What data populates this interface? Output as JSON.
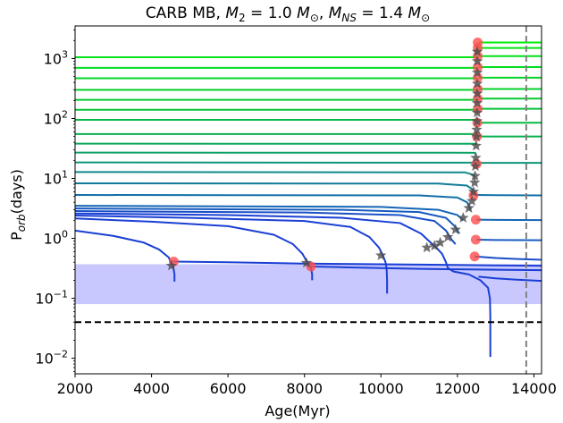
{
  "chart_data": {
    "type": "line",
    "title_parts": [
      "CARB MB, ",
      "M",
      "2",
      " = 1.0 ",
      "M",
      "⊙",
      ", ",
      "M",
      "NS",
      " = 1.4 ",
      "M",
      "⊙"
    ],
    "xlabel": "Age(Myr)",
    "ylabel_parts": [
      "P",
      "orb",
      "(days)"
    ],
    "xlim": [
      2000,
      14200
    ],
    "ylim": [
      0.0055,
      3500
    ],
    "y_scale": "log",
    "x_ticks": [
      {
        "value": 2000,
        "label": "2000"
      },
      {
        "value": 4000,
        "label": "4000"
      },
      {
        "value": 6000,
        "label": "6000"
      },
      {
        "value": 8000,
        "label": "8000"
      },
      {
        "value": 10000,
        "label": "10000"
      },
      {
        "value": 12000,
        "label": "12000"
      },
      {
        "value": 14000,
        "label": "14000"
      }
    ],
    "y_ticks": [
      {
        "value": 0.01,
        "base": "10",
        "exp": "−2"
      },
      {
        "value": 0.1,
        "base": "10",
        "exp": "−1"
      },
      {
        "value": 1,
        "base": "10",
        "exp": "0"
      },
      {
        "value": 10,
        "base": "10",
        "exp": "1"
      },
      {
        "value": 100,
        "base": "10",
        "exp": "2"
      },
      {
        "value": 1000,
        "base": "10",
        "exp": "3"
      }
    ],
    "shaded_band": {
      "y_range": [
        0.08,
        0.37
      ],
      "color": "#c8c8ff"
    },
    "reference_lines": [
      {
        "orientation": "horizontal",
        "value": 0.04,
        "style": "dashed",
        "color": "#000000"
      },
      {
        "orientation": "vertical",
        "value": 13800,
        "style": "dashed",
        "color": "#808080"
      }
    ],
    "series": [
      {
        "color": "#1a3fd4",
        "points": [
          [
            2000,
            1.35
          ],
          [
            3000,
            1.1
          ],
          [
            3800,
            0.85
          ],
          [
            4200,
            0.65
          ],
          [
            4450,
            0.48
          ],
          [
            4520,
            0.38
          ],
          [
            4560,
            0.35
          ],
          [
            4580,
            0.3
          ],
          [
            4600,
            0.25
          ],
          [
            4600,
            0.19
          ]
        ]
      },
      {
        "color": "#1a3fd4",
        "points": [
          [
            4560,
            0.41
          ],
          [
            6000,
            0.4
          ],
          [
            7000,
            0.39
          ],
          [
            8000,
            0.38
          ],
          [
            9000,
            0.375
          ],
          [
            10000,
            0.37
          ],
          [
            11000,
            0.365
          ],
          [
            12000,
            0.36
          ],
          [
            13000,
            0.355
          ],
          [
            14200,
            0.35
          ]
        ]
      },
      {
        "color": "#1a3fd4",
        "points": [
          [
            2000,
            2.15
          ],
          [
            4000,
            1.9
          ],
          [
            6000,
            1.6
          ],
          [
            7200,
            1.15
          ],
          [
            7700,
            0.8
          ],
          [
            7950,
            0.55
          ],
          [
            8050,
            0.42
          ],
          [
            8150,
            0.35
          ],
          [
            8180,
            0.3
          ],
          [
            8200,
            0.25
          ],
          [
            8200,
            0.2
          ]
        ]
      },
      {
        "color": "#1a3fd4",
        "points": [
          [
            8180,
            0.34
          ],
          [
            9000,
            0.33
          ],
          [
            10000,
            0.32
          ],
          [
            11000,
            0.31
          ],
          [
            12000,
            0.305
          ],
          [
            13000,
            0.3
          ],
          [
            14200,
            0.295
          ]
        ]
      },
      {
        "color": "#1a3fd4",
        "points": [
          [
            2000,
            2.4
          ],
          [
            5000,
            2.2
          ],
          [
            8000,
            1.95
          ],
          [
            9200,
            1.55
          ],
          [
            9700,
            1.05
          ],
          [
            9950,
            0.7
          ],
          [
            10050,
            0.52
          ],
          [
            10120,
            0.4
          ],
          [
            10150,
            0.3
          ],
          [
            10160,
            0.2
          ],
          [
            10160,
            0.12
          ]
        ]
      },
      {
        "color": "#1a3fd4",
        "points": [
          [
            2000,
            2.6
          ],
          [
            6000,
            2.45
          ],
          [
            9000,
            2.2
          ],
          [
            10500,
            1.8
          ],
          [
            11050,
            1.2
          ],
          [
            11300,
            0.85
          ],
          [
            11450,
            0.7
          ],
          [
            11600,
            0.55
          ],
          [
            11700,
            0.4
          ],
          [
            11750,
            0.32
          ],
          [
            11900,
            0.28
          ],
          [
            12300,
            0.25
          ],
          [
            12600,
            0.2
          ],
          [
            12800,
            0.15
          ],
          [
            12850,
            0.1
          ],
          [
            12860,
            0.05
          ],
          [
            12860,
            0.0105
          ]
        ]
      },
      {
        "color": "#1a3fd4",
        "points": [
          [
            12550,
            0.23
          ],
          [
            13000,
            0.215
          ],
          [
            13500,
            0.205
          ],
          [
            14200,
            0.195
          ]
        ]
      },
      {
        "color": "#1a4fc8",
        "points": [
          [
            2000,
            2.85
          ],
          [
            8000,
            2.7
          ],
          [
            10500,
            2.45
          ],
          [
            11400,
            1.95
          ],
          [
            11700,
            1.35
          ],
          [
            11850,
            0.95
          ],
          [
            11950,
            0.8
          ]
        ]
      },
      {
        "color": "#1a4fc8",
        "points": [
          [
            12450,
            0.5
          ],
          [
            13000,
            0.47
          ],
          [
            13500,
            0.455
          ],
          [
            14200,
            0.44
          ]
        ]
      },
      {
        "color": "#165bc0",
        "points": [
          [
            2000,
            3.15
          ],
          [
            9000,
            3.0
          ],
          [
            11000,
            2.75
          ],
          [
            11700,
            2.2
          ],
          [
            11950,
            1.55
          ],
          [
            12050,
            1.2
          ]
        ]
      },
      {
        "color": "#165bc0",
        "points": [
          [
            12500,
            0.95
          ],
          [
            13000,
            0.94
          ],
          [
            14200,
            0.93
          ]
        ]
      },
      {
        "color": "#1565b5",
        "points": [
          [
            2000,
            3.5
          ],
          [
            10000,
            3.35
          ],
          [
            11500,
            3.0
          ],
          [
            12000,
            2.45
          ],
          [
            12150,
            2.0
          ]
        ]
      },
      {
        "color": "#1565b5",
        "points": [
          [
            12500,
            2.05
          ],
          [
            13000,
            2.03
          ],
          [
            14200,
            2.02
          ]
        ]
      },
      {
        "color": "#126fa8",
        "points": [
          [
            2000,
            5.3
          ],
          [
            11000,
            5.2
          ],
          [
            12000,
            4.8
          ],
          [
            12250,
            4.0
          ],
          [
            12350,
            3.0
          ]
        ]
      },
      {
        "color": "#126fa8",
        "points": [
          [
            12450,
            5.3
          ],
          [
            13000,
            5.25
          ],
          [
            14200,
            5.2
          ]
        ]
      },
      {
        "color": "#107a9a",
        "points": [
          [
            2000,
            8.3
          ],
          [
            11500,
            8.2
          ],
          [
            12250,
            7.6
          ],
          [
            12400,
            6.5
          ],
          [
            12420,
            5.3
          ]
        ]
      },
      {
        "color": "#0f8a8a",
        "points": [
          [
            2000,
            12.8
          ],
          [
            12200,
            12.6
          ],
          [
            12420,
            11.5
          ],
          [
            12450,
            10.5
          ]
        ]
      },
      {
        "color": "#0e9478",
        "points": [
          [
            2000,
            18.5
          ],
          [
            12400,
            18.3
          ],
          [
            12470,
            17.5
          ]
        ]
      },
      {
        "color": "#0e9478",
        "points": [
          [
            12500,
            18.2
          ],
          [
            13000,
            18.2
          ],
          [
            14200,
            18.2
          ]
        ]
      },
      {
        "color": "#0ca068",
        "points": [
          [
            2000,
            27
          ],
          [
            12460,
            26.8
          ],
          [
            12490,
            25
          ]
        ]
      },
      {
        "color": "#0aa85a",
        "points": [
          [
            2000,
            38
          ],
          [
            12480,
            37.8
          ],
          [
            12500,
            36
          ]
        ]
      },
      {
        "color": "#09b04e",
        "points": [
          [
            2000,
            55
          ],
          [
            12500,
            55
          ],
          [
            12520,
            52
          ]
        ]
      },
      {
        "color": "#09b04e",
        "points": [
          [
            12550,
            50
          ],
          [
            13000,
            50
          ],
          [
            14200,
            50
          ]
        ]
      },
      {
        "color": "#07b944",
        "points": [
          [
            2000,
            95
          ],
          [
            12500,
            95
          ]
        ]
      },
      {
        "color": "#07b944",
        "points": [
          [
            12550,
            85
          ],
          [
            13000,
            85
          ],
          [
            14200,
            85
          ]
        ]
      },
      {
        "color": "#06c23a",
        "points": [
          [
            2000,
            140
          ],
          [
            12510,
            140
          ]
        ]
      },
      {
        "color": "#06c23a",
        "points": [
          [
            12550,
            145
          ],
          [
            13000,
            145
          ],
          [
            14200,
            145
          ]
        ]
      },
      {
        "color": "#05c932",
        "points": [
          [
            2000,
            205
          ],
          [
            12510,
            205
          ]
        ]
      },
      {
        "color": "#05c932",
        "points": [
          [
            12560,
            215
          ],
          [
            13000,
            215
          ],
          [
            14200,
            215
          ]
        ]
      },
      {
        "color": "#04d02a",
        "points": [
          [
            2000,
            300
          ],
          [
            12515,
            300
          ]
        ]
      },
      {
        "color": "#04d02a",
        "points": [
          [
            12560,
            310
          ],
          [
            13000,
            310
          ],
          [
            14200,
            310
          ]
        ]
      },
      {
        "color": "#03d624",
        "points": [
          [
            2000,
            470
          ],
          [
            12515,
            470
          ]
        ]
      },
      {
        "color": "#03d624",
        "points": [
          [
            12560,
            480
          ],
          [
            13000,
            480
          ],
          [
            14200,
            480
          ]
        ]
      },
      {
        "color": "#02dc1e",
        "points": [
          [
            2000,
            700
          ],
          [
            12520,
            700
          ]
        ]
      },
      {
        "color": "#02dc1e",
        "points": [
          [
            12560,
            720
          ],
          [
            13000,
            720
          ],
          [
            14200,
            720
          ]
        ]
      },
      {
        "color": "#01e218",
        "points": [
          [
            2000,
            1050
          ],
          [
            12520,
            1050
          ]
        ]
      },
      {
        "color": "#01e218",
        "points": [
          [
            12560,
            1100
          ],
          [
            13000,
            1100
          ],
          [
            14200,
            1100
          ]
        ]
      },
      {
        "color": "#00e812",
        "points": [
          [
            12560,
            1500
          ],
          [
            13000,
            1500
          ],
          [
            14200,
            1500
          ]
        ]
      },
      {
        "color": "#00ee0c",
        "points": [
          [
            12560,
            1850
          ],
          [
            13000,
            1850
          ],
          [
            14200,
            1850
          ]
        ]
      },
      {
        "color": "#00dd20",
        "points": [
          [
            12500,
            1750
          ],
          [
            12500,
            1100
          ]
        ]
      }
    ],
    "star_markers": [
      [
        4520,
        0.35
      ],
      [
        8050,
        0.39
      ],
      [
        10000,
        0.52
      ],
      [
        11200,
        0.7
      ],
      [
        11400,
        0.75
      ],
      [
        11550,
        0.85
      ],
      [
        11750,
        1.05
      ],
      [
        11950,
        1.4
      ],
      [
        12150,
        2.2
      ],
      [
        12300,
        3.2
      ],
      [
        12380,
        4.2
      ],
      [
        12420,
        6.0
      ],
      [
        12450,
        8.5
      ],
      [
        12460,
        11
      ],
      [
        12470,
        16
      ],
      [
        12480,
        22
      ],
      [
        12490,
        35
      ],
      [
        12500,
        50
      ],
      [
        12505,
        65
      ],
      [
        12510,
        90
      ],
      [
        12515,
        125
      ],
      [
        12515,
        180
      ],
      [
        12520,
        260
      ],
      [
        12520,
        380
      ],
      [
        12520,
        580
      ],
      [
        12520,
        900
      ],
      [
        12520,
        1300
      ]
    ],
    "circle_markers": [
      [
        4580,
        0.41
      ],
      [
        8170,
        0.34
      ],
      [
        12450,
        0.5
      ],
      [
        12480,
        0.95
      ],
      [
        12480,
        2.05
      ],
      [
        12420,
        5.2
      ],
      [
        12500,
        17.5
      ],
      [
        12510,
        50
      ],
      [
        12520,
        85
      ],
      [
        12530,
        145
      ],
      [
        12530,
        215
      ],
      [
        12530,
        310
      ],
      [
        12530,
        480
      ],
      [
        12530,
        720
      ],
      [
        12530,
        1100
      ],
      [
        12530,
        1500
      ],
      [
        12530,
        1850
      ]
    ],
    "marker_colors": {
      "star": "#4a4a4a",
      "circle": "#ff4d4d"
    }
  }
}
